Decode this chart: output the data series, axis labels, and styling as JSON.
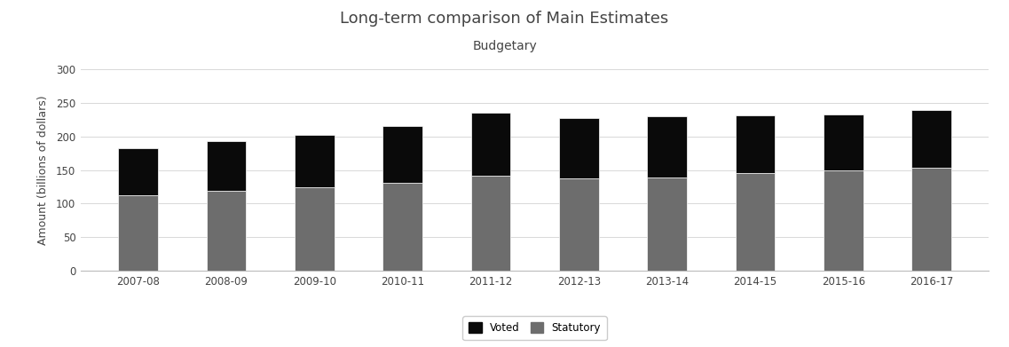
{
  "categories": [
    "2007-08",
    "2008-09",
    "2009-10",
    "2010-11",
    "2011-12",
    "2012-13",
    "2013-14",
    "2014-15",
    "2015-16",
    "2016-17"
  ],
  "statutory": [
    112,
    119,
    124,
    131,
    141,
    138,
    139,
    145,
    149,
    153
  ],
  "voted": [
    70,
    74,
    79,
    84,
    95,
    90,
    91,
    86,
    84,
    86
  ],
  "statutory_color": "#6d6d6d",
  "voted_color": "#0a0a0a",
  "title": "Long-term comparison of Main Estimates",
  "subtitle": "Budgetary",
  "ylabel": "Amount (billions of dollars)",
  "ylim": [
    0,
    300
  ],
  "yticks": [
    0,
    50,
    100,
    150,
    200,
    250,
    300
  ],
  "legend_labels": [
    "Voted",
    "Statutory"
  ],
  "title_fontsize": 13,
  "subtitle_fontsize": 10,
  "ylabel_fontsize": 9,
  "tick_fontsize": 8.5,
  "background_color": "#ffffff",
  "bar_width": 0.45,
  "grid_color": "#d8d8d8",
  "spine_color": "#bbbbbb",
  "text_color": "#444444"
}
